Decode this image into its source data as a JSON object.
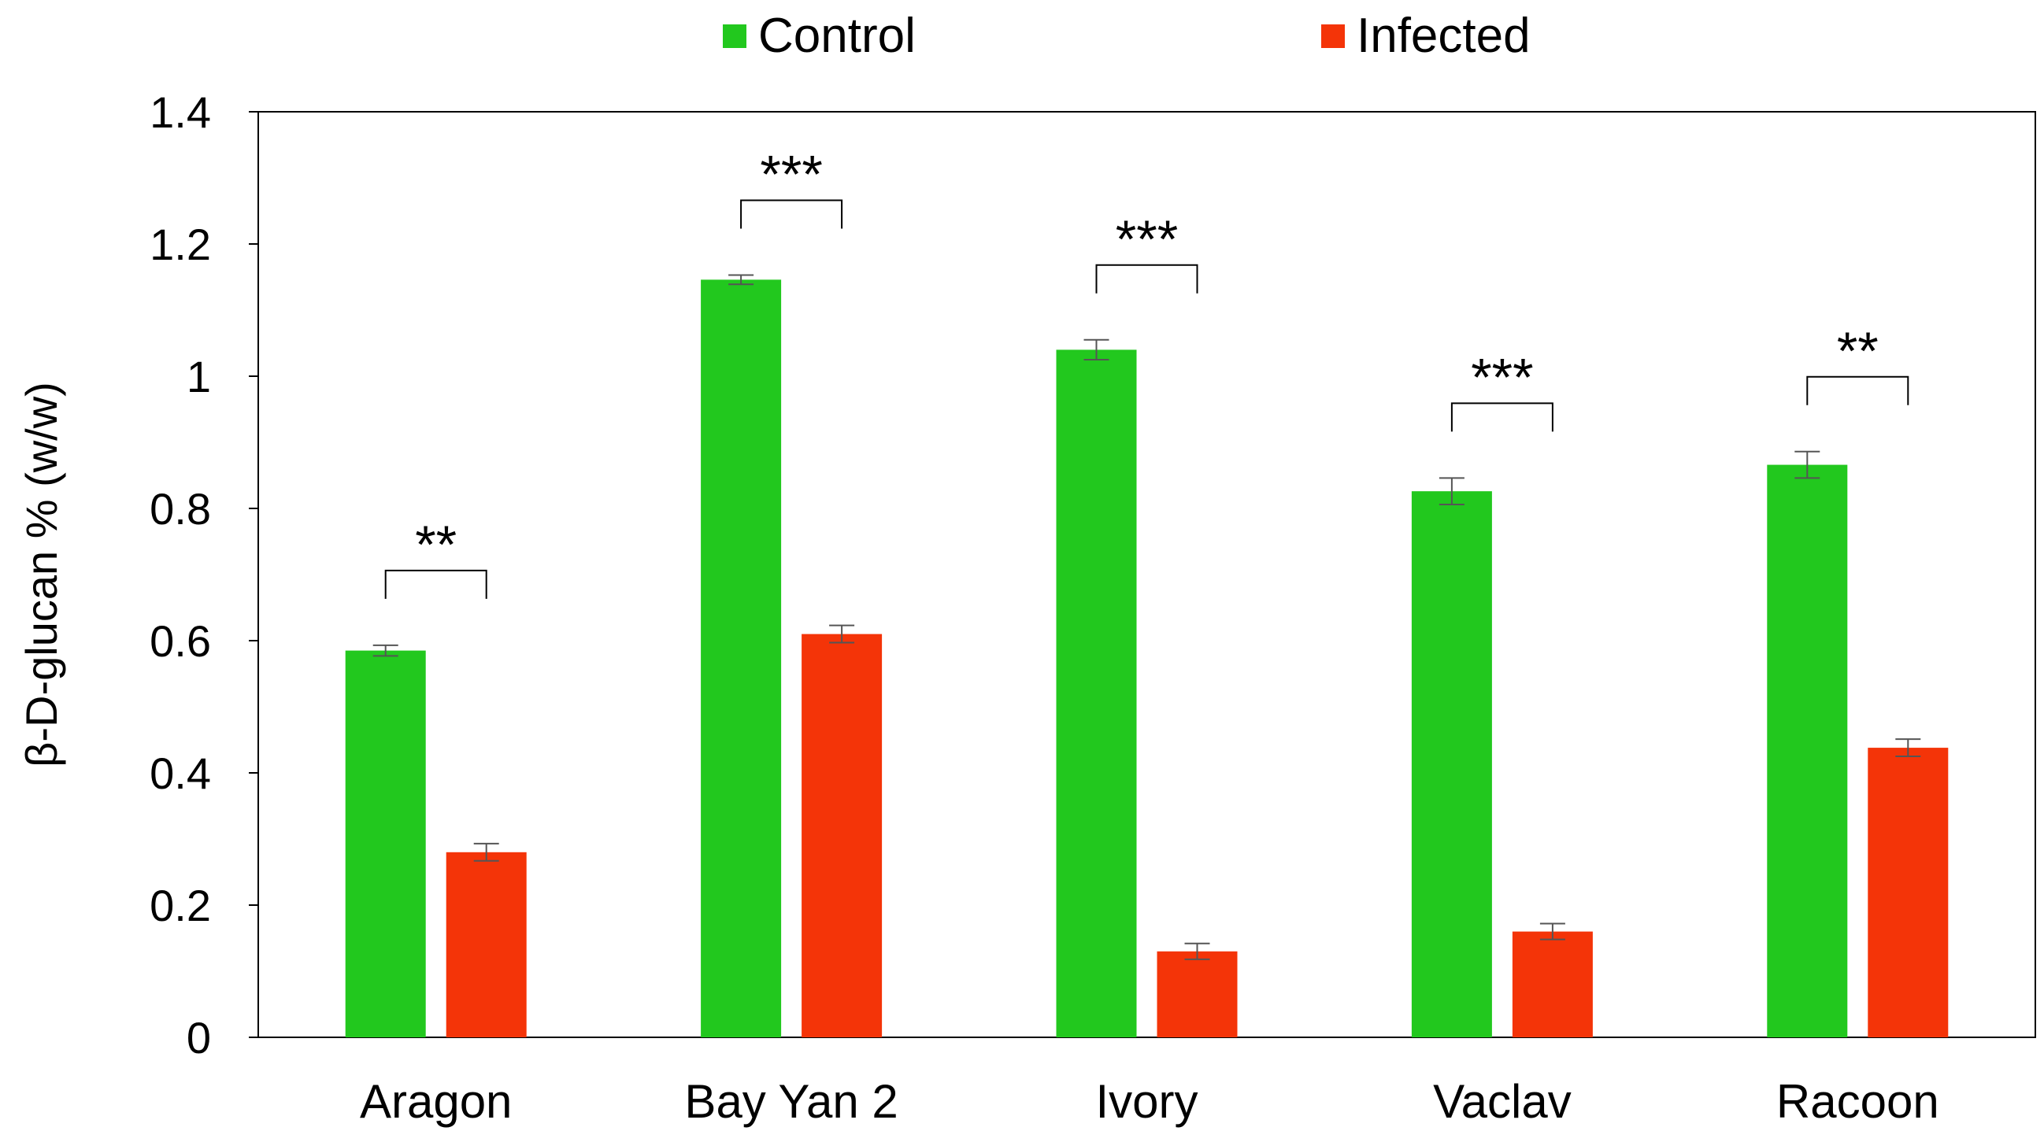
{
  "chart_data": {
    "type": "bar",
    "title": "",
    "xlabel": "",
    "ylabel": "β-D-glucan % (w/w)",
    "ylim": [
      0,
      1.4
    ],
    "yticks": [
      {
        "value": 0,
        "label": "0"
      },
      {
        "value": 0.2,
        "label": "0.2"
      },
      {
        "value": 0.4,
        "label": "0.4"
      },
      {
        "value": 0.6,
        "label": "0.6"
      },
      {
        "value": 0.8,
        "label": "0.8"
      },
      {
        "value": 1,
        "label": "1"
      },
      {
        "value": 1.2,
        "label": "1.2"
      },
      {
        "value": 1.4,
        "label": "1.4"
      }
    ],
    "categories": [
      "Aragon",
      "Bay Yan 2",
      "Ivory",
      "Vaclav",
      "Racoon"
    ],
    "series": [
      {
        "name": "Control",
        "color": "#22c81e",
        "values": [
          0.585,
          1.146,
          1.04,
          0.826,
          0.866
        ],
        "errors": [
          0.008,
          0.007,
          0.015,
          0.02,
          0.02
        ]
      },
      {
        "name": "Infected",
        "color": "#f43408",
        "values": [
          0.28,
          0.61,
          0.13,
          0.16,
          0.438
        ],
        "errors": [
          0.013,
          0.013,
          0.012,
          0.012,
          0.013
        ]
      }
    ],
    "significance": [
      "**",
      "***",
      "***",
      "***",
      "**"
    ],
    "legend_position": "top-center",
    "grid": false
  }
}
